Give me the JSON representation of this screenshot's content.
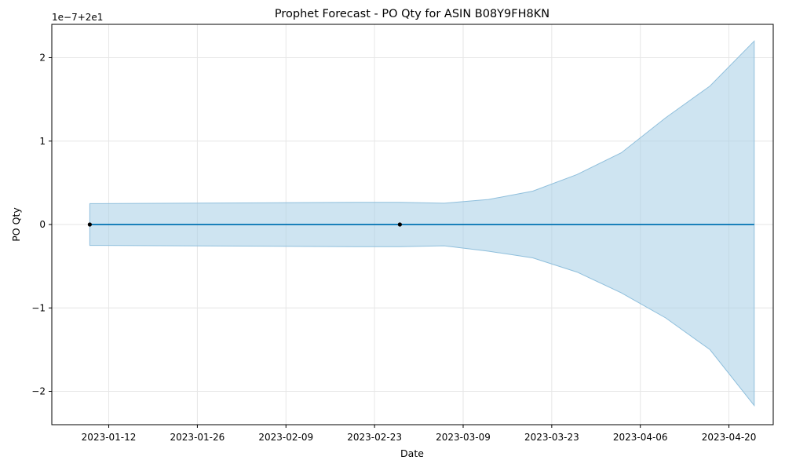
{
  "chart_data": {
    "type": "line",
    "title": "Prophet Forecast - PO Qty for ASIN B08Y9FH8KN",
    "xlabel": "Date",
    "ylabel": "PO Qty",
    "offset_label": "1e−7+2e1",
    "grid": true,
    "colors": {
      "line": "#0072b2",
      "band": "#a6cde6",
      "band_edge": "#8fbfdc",
      "points": "#000000",
      "grid": "#e6e6e6"
    },
    "x_ticks": [
      "2023-01-12",
      "2023-01-26",
      "2023-02-09",
      "2023-02-23",
      "2023-03-09",
      "2023-03-23",
      "2023-04-06",
      "2023-04-20"
    ],
    "y_ticks": [
      "2",
      "1",
      "0",
      "−1",
      "−2"
    ],
    "xlim": [
      "2023-01-03",
      "2023-04-27"
    ],
    "ylim": [
      -2.4,
      2.4
    ],
    "observed": [
      {
        "date": "2023-01-09",
        "value": 0
      },
      {
        "date": "2023-02-27",
        "value": 0
      }
    ],
    "forecast": [
      {
        "date": "2023-01-09",
        "yhat": 0,
        "lower": -0.25,
        "upper": 0.25
      },
      {
        "date": "2023-01-23",
        "yhat": 0,
        "lower": -0.255,
        "upper": 0.255
      },
      {
        "date": "2023-02-06",
        "yhat": 0,
        "lower": -0.26,
        "upper": 0.26
      },
      {
        "date": "2023-02-20",
        "yhat": 0,
        "lower": -0.265,
        "upper": 0.265
      },
      {
        "date": "2023-02-27",
        "yhat": 0,
        "lower": -0.265,
        "upper": 0.265
      },
      {
        "date": "2023-03-06",
        "yhat": 0,
        "lower": -0.255,
        "upper": 0.255
      },
      {
        "date": "2023-03-13",
        "yhat": 0,
        "lower": -0.32,
        "upper": 0.3
      },
      {
        "date": "2023-03-20",
        "yhat": 0,
        "lower": -0.4,
        "upper": 0.4
      },
      {
        "date": "2023-03-27",
        "yhat": 0,
        "lower": -0.57,
        "upper": 0.6
      },
      {
        "date": "2023-04-03",
        "yhat": 0,
        "lower": -0.82,
        "upper": 0.86
      },
      {
        "date": "2023-04-10",
        "yhat": 0,
        "lower": -1.12,
        "upper": 1.28
      },
      {
        "date": "2023-04-17",
        "yhat": 0,
        "lower": -1.5,
        "upper": 1.66
      },
      {
        "date": "2023-04-24",
        "yhat": 0,
        "lower": -2.17,
        "upper": 2.2
      }
    ]
  }
}
